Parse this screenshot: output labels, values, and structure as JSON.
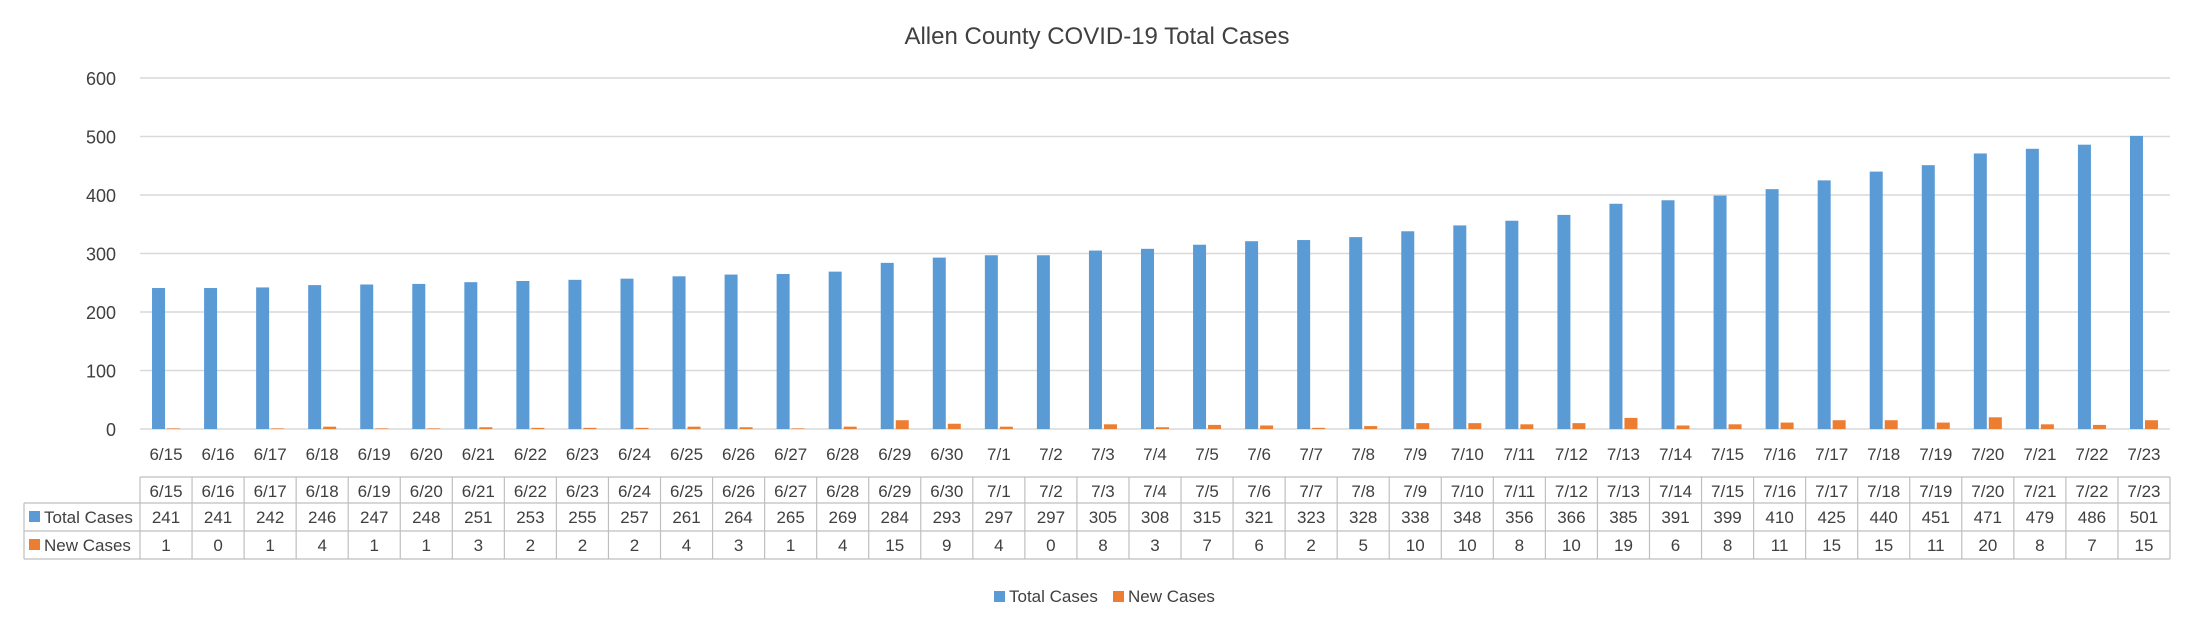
{
  "chart_data": {
    "type": "bar",
    "title": "Allen County COVID-19 Total Cases",
    "categories": [
      "6/15",
      "6/16",
      "6/17",
      "6/18",
      "6/19",
      "6/20",
      "6/21",
      "6/22",
      "6/23",
      "6/24",
      "6/25",
      "6/26",
      "6/27",
      "6/28",
      "6/29",
      "6/30",
      "7/1",
      "7/2",
      "7/3",
      "7/4",
      "7/5",
      "7/6",
      "7/7",
      "7/8",
      "7/9",
      "7/10",
      "7/11",
      "7/12",
      "7/13",
      "7/14",
      "7/15",
      "7/16",
      "7/17",
      "7/18",
      "7/19",
      "7/20",
      "7/21",
      "7/22",
      "7/23"
    ],
    "series": [
      {
        "name": "Total Cases",
        "color": "#5b9bd5",
        "values": [
          241,
          241,
          242,
          246,
          247,
          248,
          251,
          253,
          255,
          257,
          261,
          264,
          265,
          269,
          284,
          293,
          297,
          297,
          305,
          308,
          315,
          321,
          323,
          328,
          338,
          348,
          356,
          366,
          385,
          391,
          399,
          410,
          425,
          440,
          451,
          471,
          479,
          486,
          501
        ]
      },
      {
        "name": "New Cases",
        "color": "#ed7d31",
        "values": [
          1,
          0,
          1,
          4,
          1,
          1,
          3,
          2,
          2,
          2,
          4,
          3,
          1,
          4,
          15,
          9,
          4,
          0,
          8,
          3,
          7,
          6,
          2,
          5,
          10,
          10,
          8,
          10,
          19,
          6,
          8,
          11,
          15,
          15,
          11,
          20,
          8,
          7,
          15
        ]
      }
    ],
    "yticks": [
      "0",
      "100",
      "200",
      "300",
      "400",
      "500",
      "600"
    ],
    "ylim": [
      0,
      600
    ],
    "grid": true,
    "data_table": true,
    "legend": "bottom-center",
    "gridline_color": "#d9d9d9"
  }
}
